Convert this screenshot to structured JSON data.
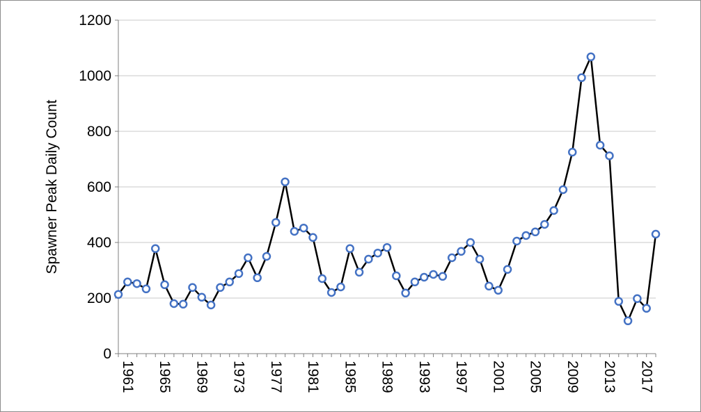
{
  "chart_data": {
    "type": "line",
    "title": "",
    "xlabel": "",
    "ylabel": "Spawner Peak Daily Count",
    "x": [
      1961,
      1962,
      1963,
      1964,
      1965,
      1966,
      1967,
      1968,
      1969,
      1970,
      1971,
      1972,
      1973,
      1974,
      1975,
      1976,
      1977,
      1978,
      1979,
      1980,
      1981,
      1982,
      1983,
      1984,
      1985,
      1986,
      1987,
      1988,
      1989,
      1990,
      1991,
      1992,
      1993,
      1994,
      1995,
      1996,
      1997,
      1998,
      1999,
      2000,
      2001,
      2002,
      2003,
      2004,
      2005,
      2006,
      2007,
      2008,
      2009,
      2010,
      2011,
      2012,
      2013,
      2014,
      2015,
      2016,
      2017,
      2018,
      2019
    ],
    "series": [
      {
        "name": "",
        "values": [
          213,
          258,
          252,
          233,
          378,
          248,
          180,
          178,
          238,
          203,
          175,
          238,
          258,
          288,
          345,
          273,
          350,
          472,
          618,
          440,
          452,
          418,
          270,
          220,
          240,
          378,
          293,
          340,
          362,
          382,
          280,
          218,
          258,
          275,
          285,
          278,
          345,
          368,
          400,
          340,
          243,
          228,
          303,
          405,
          425,
          438,
          465,
          515,
          590,
          725,
          993,
          1068,
          750,
          712,
          188,
          118,
          198,
          163,
          430
        ]
      }
    ],
    "xticks": [
      "1961",
      "1965",
      "1969",
      "1973",
      "1977",
      "1981",
      "1985",
      "1989",
      "1993",
      "1997",
      "2001",
      "2005",
      "2009",
      "2013",
      "2017"
    ],
    "yticks": [
      "0",
      "200",
      "400",
      "600",
      "800",
      "1000",
      "1200"
    ],
    "ylim": [
      0,
      1200
    ],
    "xlim": [
      1961,
      2019
    ],
    "grid": "horizontal",
    "legend": "none",
    "colors": {
      "line": "#000000",
      "marker": "#4472c4",
      "grid": "#c8c8c8",
      "axis": "#7f7f7f"
    }
  }
}
